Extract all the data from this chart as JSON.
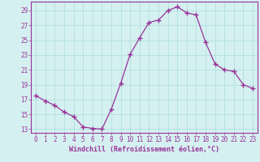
{
  "x": [
    0,
    1,
    2,
    3,
    4,
    5,
    6,
    7,
    8,
    9,
    10,
    11,
    12,
    13,
    14,
    15,
    16,
    17,
    18,
    19,
    20,
    21,
    22,
    23
  ],
  "y": [
    17.5,
    16.8,
    16.2,
    15.3,
    14.7,
    13.3,
    13.1,
    13.0,
    15.7,
    19.2,
    23.1,
    25.3,
    27.4,
    27.7,
    29.0,
    29.5,
    28.7,
    28.4,
    24.7,
    21.8,
    21.0,
    20.8,
    19.0,
    18.5
  ],
  "line_color": "#993399",
  "marker": "+",
  "marker_size": 4,
  "marker_lw": 1.0,
  "bg_color": "#d5f0f0",
  "grid_color": "#aadddd",
  "tick_color": "#993399",
  "label_color": "#993399",
  "xlabel": "Windchill (Refroidissement éolien,°C)",
  "ylabel": "",
  "xlim": [
    -0.5,
    23.5
  ],
  "ylim": [
    12.5,
    30.2
  ],
  "yticks": [
    13,
    15,
    17,
    19,
    21,
    23,
    25,
    27,
    29
  ],
  "xticks": [
    0,
    1,
    2,
    3,
    4,
    5,
    6,
    7,
    8,
    9,
    10,
    11,
    12,
    13,
    14,
    15,
    16,
    17,
    18,
    19,
    20,
    21,
    22,
    23
  ],
  "axis_fontsize": 5.5,
  "xlabel_fontsize": 6.0,
  "line_width": 0.9
}
